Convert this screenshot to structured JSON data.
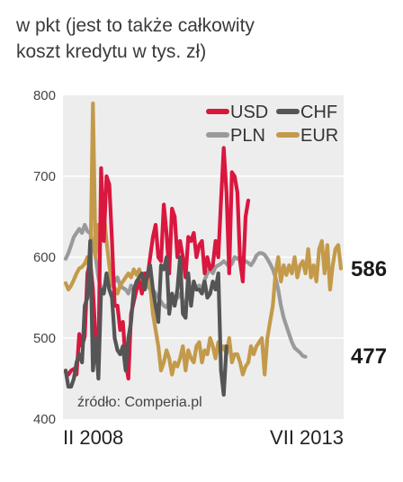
{
  "subtitle": "w pkt (jest to także całkowity\nkoszt kredytu w tys. zł)",
  "source": "źródło: Comperia.pl",
  "chart_data": {
    "type": "line",
    "ylim": [
      400,
      800
    ],
    "yticks": [
      400,
      500,
      600,
      700,
      800
    ],
    "x_start_label": "II 2008",
    "x_end_label": "VII 2013",
    "end_labels": {
      "EUR": "586",
      "PLN": "477"
    },
    "series": [
      {
        "name": "USD",
        "color": "#d9173f",
        "width": 4.2,
        "values": [
          [
            0,
            458
          ],
          [
            1,
            455
          ],
          [
            2,
            460
          ],
          [
            3,
            462
          ],
          [
            4,
            455
          ],
          [
            5,
            505
          ],
          [
            6,
            490
          ],
          [
            7,
            502
          ],
          [
            8,
            580
          ],
          [
            9,
            595
          ],
          [
            10,
            560
          ],
          [
            11,
            500
          ],
          [
            12,
            470
          ],
          [
            13,
            710
          ],
          [
            14,
            620
          ],
          [
            15,
            700
          ],
          [
            16,
            690
          ],
          [
            17,
            620
          ],
          [
            18,
            540
          ],
          [
            19,
            540
          ],
          [
            20,
            510
          ],
          [
            21,
            520
          ],
          [
            22,
            470
          ],
          [
            23,
            450
          ],
          [
            24,
            530
          ],
          [
            25,
            545
          ],
          [
            26,
            560
          ],
          [
            27,
            570
          ],
          [
            28,
            555
          ],
          [
            29,
            580
          ],
          [
            30,
            575
          ],
          [
            31,
            600
          ],
          [
            32,
            625
          ],
          [
            33,
            640
          ],
          [
            34,
            600
          ],
          [
            35,
            595
          ],
          [
            36,
            665
          ],
          [
            37,
            630
          ],
          [
            38,
            580
          ],
          [
            39,
            660
          ],
          [
            40,
            650
          ],
          [
            41,
            600
          ],
          [
            42,
            620
          ],
          [
            43,
            600
          ],
          [
            44,
            575
          ],
          [
            45,
            625
          ],
          [
            46,
            620
          ],
          [
            47,
            630
          ],
          [
            48,
            600
          ],
          [
            49,
            615
          ],
          [
            50,
            620
          ],
          [
            51,
            580
          ],
          [
            52,
            600
          ],
          [
            53,
            585
          ],
          [
            54,
            590
          ],
          [
            55,
            620
          ],
          [
            56,
            600
          ],
          [
            57,
            670
          ],
          [
            58,
            735
          ],
          [
            59,
            680
          ],
          [
            60,
            580
          ],
          [
            61,
            705
          ],
          [
            62,
            700
          ],
          [
            63,
            680
          ],
          [
            64,
            595
          ],
          [
            65,
            570
          ],
          [
            66,
            650
          ],
          [
            67,
            670
          ]
        ]
      },
      {
        "name": "CHF",
        "color": "#555555",
        "width": 4.2,
        "values": [
          [
            0,
            460
          ],
          [
            1,
            440
          ],
          [
            2,
            440
          ],
          [
            3,
            450
          ],
          [
            4,
            470
          ],
          [
            5,
            480
          ],
          [
            6,
            470
          ],
          [
            7,
            540
          ],
          [
            8,
            550
          ],
          [
            9,
            620
          ],
          [
            10,
            460
          ],
          [
            11,
            500
          ],
          [
            12,
            450
          ],
          [
            13,
            560
          ],
          [
            14,
            555
          ],
          [
            15,
            580
          ],
          [
            16,
            560
          ],
          [
            17,
            550
          ],
          [
            18,
            500
          ],
          [
            19,
            485
          ],
          [
            20,
            480
          ],
          [
            21,
            490
          ],
          [
            22,
            460
          ],
          [
            23,
            500
          ],
          [
            24,
            520
          ],
          [
            25,
            560
          ],
          [
            26,
            570
          ],
          [
            27,
            575
          ],
          [
            28,
            580
          ],
          [
            29,
            560
          ],
          [
            30,
            580
          ],
          [
            31,
            590
          ],
          [
            32,
            560
          ],
          [
            33,
            540
          ],
          [
            34,
            520
          ],
          [
            35,
            590
          ],
          [
            36,
            585
          ],
          [
            37,
            600
          ],
          [
            38,
            530
          ],
          [
            39,
            555
          ],
          [
            40,
            540
          ],
          [
            41,
            560
          ],
          [
            42,
            600
          ],
          [
            43,
            530
          ],
          [
            44,
            525
          ],
          [
            45,
            580
          ],
          [
            46,
            540
          ],
          [
            47,
            570
          ],
          [
            48,
            560
          ],
          [
            49,
            560
          ],
          [
            50,
            555
          ],
          [
            51,
            570
          ],
          [
            52,
            550
          ],
          [
            53,
            555
          ],
          [
            54,
            570
          ],
          [
            55,
            560
          ],
          [
            56,
            580
          ],
          [
            57,
            460
          ],
          [
            58,
            430
          ],
          [
            59,
            490
          ]
        ]
      },
      {
        "name": "PLN",
        "color": "#9a9a9a",
        "width": 4.2,
        "values": [
          [
            0,
            598
          ],
          [
            1,
            605
          ],
          [
            2,
            615
          ],
          [
            3,
            625
          ],
          [
            4,
            630
          ],
          [
            5,
            635
          ],
          [
            6,
            630
          ],
          [
            7,
            640
          ],
          [
            8,
            632
          ],
          [
            9,
            630
          ],
          [
            10,
            615
          ],
          [
            11,
            600
          ],
          [
            12,
            575
          ],
          [
            13,
            560
          ],
          [
            14,
            562
          ],
          [
            15,
            570
          ],
          [
            16,
            572
          ],
          [
            17,
            575
          ],
          [
            18,
            570
          ],
          [
            19,
            575
          ],
          [
            20,
            565
          ],
          [
            21,
            562
          ],
          [
            22,
            560
          ],
          [
            23,
            555
          ],
          [
            24,
            565
          ],
          [
            25,
            560
          ],
          [
            26,
            560
          ],
          [
            27,
            565
          ],
          [
            28,
            570
          ],
          [
            29,
            562
          ],
          [
            30,
            565
          ],
          [
            31,
            560
          ],
          [
            32,
            560
          ],
          [
            33,
            555
          ],
          [
            34,
            550
          ],
          [
            35,
            545
          ],
          [
            36,
            540
          ],
          [
            37,
            538
          ],
          [
            38,
            545
          ],
          [
            39,
            550
          ],
          [
            40,
            545
          ],
          [
            41,
            550
          ],
          [
            42,
            555
          ],
          [
            43,
            545
          ],
          [
            44,
            545
          ],
          [
            45,
            552
          ],
          [
            46,
            555
          ],
          [
            47,
            560
          ],
          [
            48,
            562
          ],
          [
            49,
            565
          ],
          [
            50,
            560
          ],
          [
            51,
            572
          ],
          [
            52,
            580
          ],
          [
            53,
            585
          ],
          [
            54,
            580
          ],
          [
            55,
            588
          ],
          [
            56,
            590
          ],
          [
            57,
            592
          ],
          [
            58,
            595
          ],
          [
            59,
            592
          ],
          [
            60,
            588
          ],
          [
            61,
            592
          ],
          [
            62,
            600
          ],
          [
            63,
            598
          ],
          [
            64,
            600
          ],
          [
            65,
            598
          ],
          [
            66,
            595
          ],
          [
            67,
            593
          ],
          [
            68,
            590
          ],
          [
            69,
            595
          ],
          [
            70,
            602
          ],
          [
            71,
            605
          ],
          [
            72,
            605
          ],
          [
            73,
            603
          ],
          [
            74,
            598
          ],
          [
            75,
            592
          ],
          [
            76,
            585
          ],
          [
            77,
            575
          ],
          [
            78,
            560
          ],
          [
            79,
            540
          ],
          [
            80,
            525
          ],
          [
            81,
            515
          ],
          [
            82,
            505
          ],
          [
            83,
            495
          ],
          [
            84,
            488
          ],
          [
            85,
            485
          ],
          [
            86,
            482
          ],
          [
            87,
            478
          ],
          [
            88,
            477
          ]
        ]
      },
      {
        "name": "EUR",
        "color": "#c39a4a",
        "width": 4.2,
        "values": [
          [
            0,
            568
          ],
          [
            1,
            560
          ],
          [
            2,
            565
          ],
          [
            3,
            572
          ],
          [
            4,
            580
          ],
          [
            5,
            586
          ],
          [
            6,
            588
          ],
          [
            7,
            592
          ],
          [
            8,
            600
          ],
          [
            9,
            575
          ],
          [
            10,
            790
          ],
          [
            11,
            600
          ],
          [
            12,
            640
          ],
          [
            13,
            640
          ],
          [
            14,
            655
          ],
          [
            15,
            620
          ],
          [
            16,
            590
          ],
          [
            17,
            565
          ],
          [
            18,
            562
          ],
          [
            19,
            555
          ],
          [
            20,
            565
          ],
          [
            21,
            570
          ],
          [
            22,
            575
          ],
          [
            23,
            580
          ],
          [
            24,
            575
          ],
          [
            25,
            585
          ],
          [
            26,
            578
          ],
          [
            27,
            585
          ],
          [
            28,
            570
          ],
          [
            29,
            572
          ],
          [
            30,
            580
          ],
          [
            31,
            565
          ],
          [
            32,
            530
          ],
          [
            33,
            510
          ],
          [
            34,
            490
          ],
          [
            35,
            460
          ],
          [
            36,
            470
          ],
          [
            37,
            485
          ],
          [
            38,
            475
          ],
          [
            39,
            455
          ],
          [
            40,
            470
          ],
          [
            41,
            465
          ],
          [
            42,
            475
          ],
          [
            43,
            490
          ],
          [
            44,
            460
          ],
          [
            45,
            485
          ],
          [
            46,
            475
          ],
          [
            47,
            470
          ],
          [
            48,
            490
          ],
          [
            49,
            495
          ],
          [
            50,
            470
          ],
          [
            51,
            485
          ],
          [
            52,
            480
          ],
          [
            53,
            500
          ],
          [
            54,
            490
          ],
          [
            55,
            475
          ],
          [
            56,
            495
          ],
          [
            57,
            485
          ],
          [
            58,
            490
          ],
          [
            59,
            480
          ],
          [
            60,
            500
          ],
          [
            61,
            470
          ],
          [
            62,
            480
          ],
          [
            63,
            480
          ],
          [
            64,
            470
          ],
          [
            65,
            455
          ],
          [
            66,
            465
          ],
          [
            67,
            470
          ],
          [
            68,
            490
          ],
          [
            69,
            480
          ],
          [
            70,
            490
          ],
          [
            71,
            495
          ],
          [
            72,
            500
          ],
          [
            73,
            455
          ],
          [
            74,
            500
          ],
          [
            75,
            520
          ],
          [
            76,
            540
          ],
          [
            77,
            580
          ],
          [
            78,
            600
          ],
          [
            79,
            570
          ],
          [
            80,
            590
          ],
          [
            81,
            578
          ],
          [
            82,
            590
          ],
          [
            83,
            580
          ],
          [
            84,
            600
          ],
          [
            85,
            575
          ],
          [
            86,
            590
          ],
          [
            87,
            595
          ],
          [
            88,
            580
          ],
          [
            89,
            610
          ],
          [
            90,
            575
          ],
          [
            91,
            590
          ],
          [
            92,
            570
          ],
          [
            93,
            610
          ],
          [
            94,
            620
          ],
          [
            95,
            580
          ],
          [
            96,
            615
          ],
          [
            97,
            560
          ],
          [
            98,
            590
          ],
          [
            99,
            610
          ],
          [
            100,
            615
          ],
          [
            101,
            586
          ]
        ]
      }
    ]
  }
}
